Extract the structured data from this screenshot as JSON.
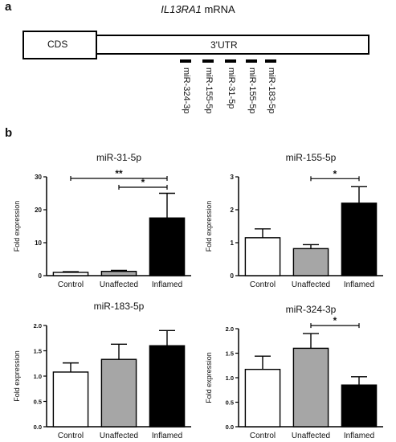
{
  "panel_a": {
    "letter": "a",
    "title_gene": "IL13RA1",
    "title_rest": " mRNA",
    "cds_label": "CDS",
    "utr_label": "3'UTR",
    "sites": [
      "miR-324-3p",
      "miR-155-5p",
      "miR-31-5p",
      "miR-155-5p",
      "miR-183-5p"
    ]
  },
  "panel_b": {
    "letter": "b"
  },
  "chart_data": [
    {
      "type": "bar",
      "title": "miR-31-5p",
      "ylabel": "Fold expression",
      "categories": [
        "Control",
        "Unaffected",
        "Inflamed"
      ],
      "values": [
        1.0,
        1.3,
        17.5
      ],
      "errors": [
        0.2,
        0.3,
        7.5
      ],
      "colors": [
        "#ffffff",
        "#a6a6a6",
        "#000000"
      ],
      "ylim": [
        0,
        30
      ],
      "yticks": [
        "0",
        "10",
        "20",
        "30"
      ],
      "significance": [
        {
          "from": 0,
          "to": 2,
          "label": "**"
        },
        {
          "from": 1,
          "to": 2,
          "label": "*"
        }
      ]
    },
    {
      "type": "bar",
      "title": "miR-155-5p",
      "ylabel": "Fold expression",
      "categories": [
        "Control",
        "Unaffected",
        "Inflamed"
      ],
      "values": [
        1.15,
        0.82,
        2.2
      ],
      "errors": [
        0.27,
        0.12,
        0.5
      ],
      "colors": [
        "#ffffff",
        "#a6a6a6",
        "#000000"
      ],
      "ylim": [
        0,
        3
      ],
      "yticks": [
        "0",
        "1",
        "2",
        "3"
      ],
      "significance": [
        {
          "from": 1,
          "to": 2,
          "label": "*"
        }
      ]
    },
    {
      "type": "bar",
      "title": "miR-183-5p",
      "ylabel": "Fold expression",
      "categories": [
        "Control",
        "Unaffected",
        "Inflamed"
      ],
      "values": [
        1.08,
        1.33,
        1.6
      ],
      "errors": [
        0.18,
        0.3,
        0.3
      ],
      "colors": [
        "#ffffff",
        "#a6a6a6",
        "#000000"
      ],
      "ylim": [
        0,
        2.0
      ],
      "yticks": [
        "0.0",
        "0.5",
        "1.0",
        "1.5",
        "2.0"
      ],
      "significance": []
    },
    {
      "type": "bar",
      "title": "miR-324-3p",
      "ylabel": "Fold expression",
      "categories": [
        "Control",
        "Unaffected",
        "Inflamed"
      ],
      "values": [
        1.17,
        1.6,
        0.85
      ],
      "errors": [
        0.27,
        0.3,
        0.17
      ],
      "colors": [
        "#ffffff",
        "#a6a6a6",
        "#000000"
      ],
      "ylim": [
        0,
        2.0
      ],
      "yticks": [
        "0.0",
        "0.5",
        "1.0",
        "1.5",
        "2.0"
      ],
      "significance": [
        {
          "from": 1,
          "to": 2,
          "label": "*"
        }
      ]
    }
  ]
}
